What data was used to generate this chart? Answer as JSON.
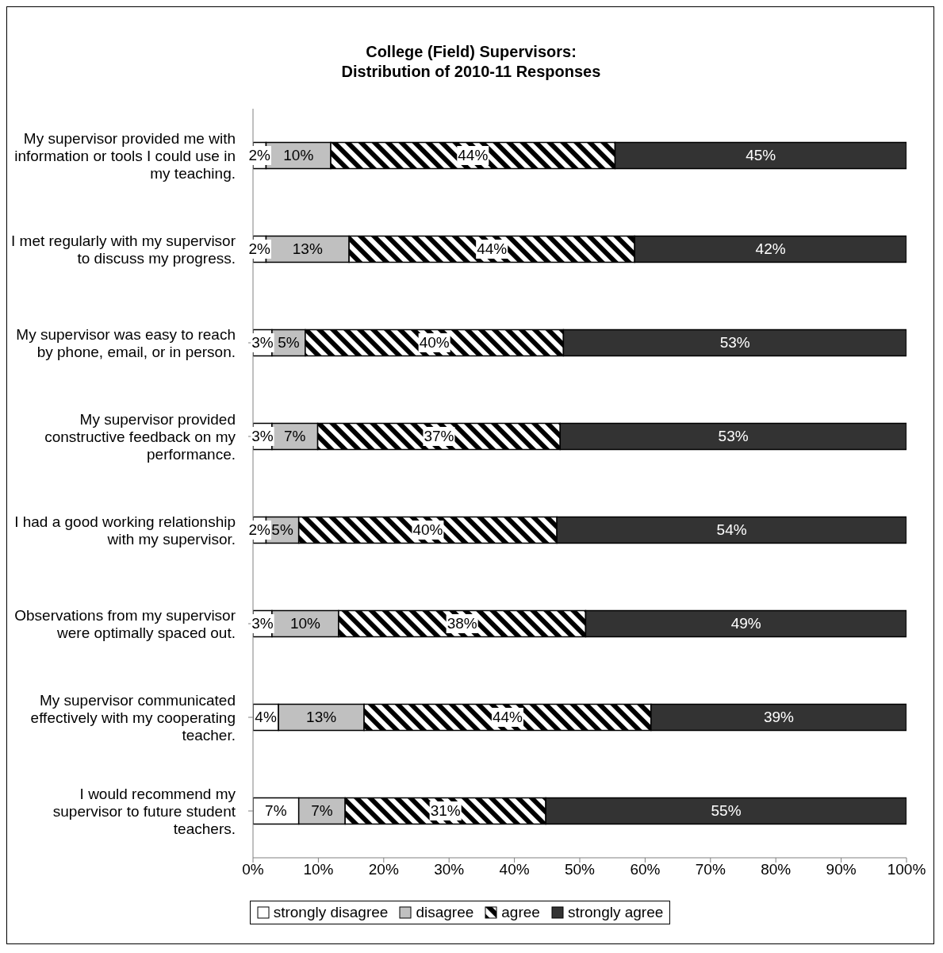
{
  "chart_data": {
    "type": "bar",
    "orientation": "horizontal",
    "stacked": true,
    "title": "College (Field) Supervisors:\nDistribution of 2010-11 Responses",
    "categories": [
      "My supervisor provided me with information or tools I could use in my teaching.",
      "I met regularly with my supervisor to discuss my progress.",
      "My supervisor was easy to reach by phone, email, or in person.",
      "My supervisor provided constructive feedback on my performance.",
      "I had a good working relationship with my supervisor.",
      "Observations from my supervisor were optimally spaced out.",
      "My supervisor communicated effectively with my cooperating teacher.",
      "I would recommend my supervisor to future student teachers."
    ],
    "series": [
      {
        "name": "strongly disagree",
        "color": "#ffffff",
        "values": [
          2,
          2,
          2.9,
          2.9,
          2,
          2.9,
          3.9,
          7
        ],
        "value_labels": [
          "2%",
          "2%",
          "3%",
          "3%",
          "2%",
          "3%",
          "4%",
          "7%"
        ]
      },
      {
        "name": "disagree",
        "color": "#c0c0c0",
        "values": [
          9.9,
          12.7,
          5.1,
          7,
          5,
          10.2,
          13.1,
          7.1
        ],
        "value_labels": [
          "10%",
          "13%",
          "5%",
          "7%",
          "5%",
          "10%",
          "13%",
          "7%"
        ]
      },
      {
        "name": "agree",
        "color": "#000000",
        "values": [
          43.5,
          43.7,
          39.5,
          37.1,
          39.5,
          37.8,
          43.9,
          30.7
        ],
        "value_labels": [
          "44%",
          "44%",
          "40%",
          "37%",
          "40%",
          "38%",
          "44%",
          "31%"
        ]
      },
      {
        "name": "strongly agree",
        "color": "#333333",
        "values": [
          44.6,
          41.6,
          52.5,
          53,
          53.5,
          49.1,
          39.1,
          55.2
        ],
        "value_labels": [
          "45%",
          "42%",
          "53%",
          "53%",
          "54%",
          "49%",
          "39%",
          "55%"
        ]
      }
    ],
    "xlim": [
      0,
      100
    ],
    "xticks": [
      {
        "value": 0,
        "label": "0%"
      },
      {
        "value": 10,
        "label": "10%"
      },
      {
        "value": 20,
        "label": "20%"
      },
      {
        "value": 30,
        "label": "30%"
      },
      {
        "value": 40,
        "label": "40%"
      },
      {
        "value": 50,
        "label": "50%"
      },
      {
        "value": 60,
        "label": "60%"
      },
      {
        "value": 70,
        "label": "70%"
      },
      {
        "value": 80,
        "label": "80%"
      },
      {
        "value": 90,
        "label": "90%"
      },
      {
        "value": 100,
        "label": "100%"
      }
    ],
    "grid": false,
    "legend": "bottom"
  }
}
